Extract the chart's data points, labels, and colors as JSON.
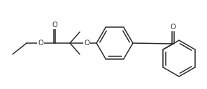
{
  "bg_color": "#ffffff",
  "line_color": "#2a2a2a",
  "line_width": 1.1,
  "figsize": [
    2.96,
    1.28
  ],
  "dpi": 100,
  "xlim": [
    0,
    296
  ],
  "ylim": [
    0,
    128
  ]
}
